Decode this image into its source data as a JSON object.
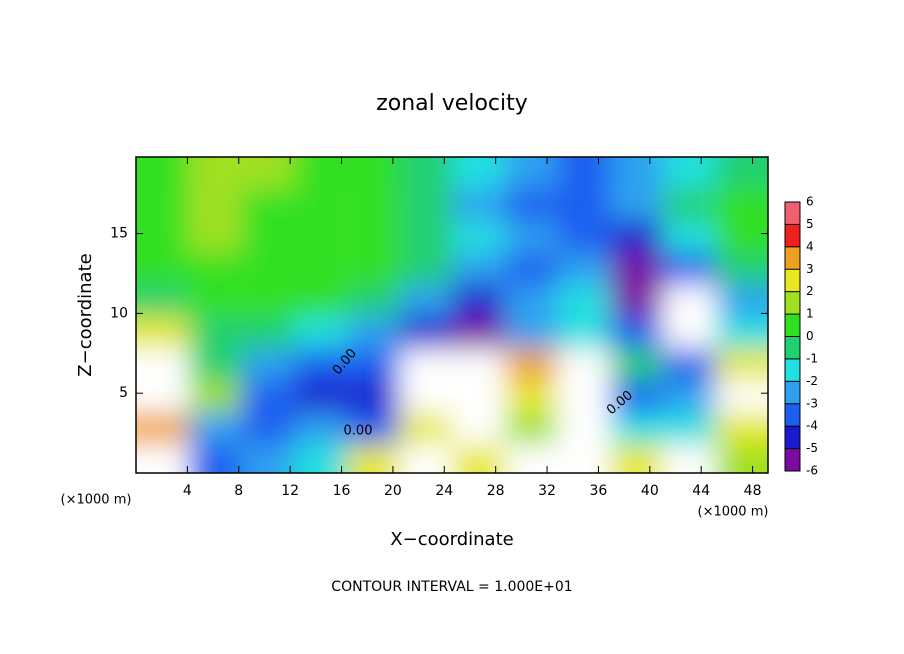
{
  "chart_data": {
    "type": "contour",
    "title": "zonal velocity",
    "x_label": "X−coordinate",
    "y_label": "Z−coordinate",
    "x_unit_label": "(×1000 m)",
    "footer": "CONTOUR INTERVAL = 1.000E+01",
    "contour_labels": [
      "0.00",
      "0.00",
      "0.00"
    ],
    "xlim": [
      0,
      49.2
    ],
    "ylim": [
      0,
      19.8
    ],
    "xticks": [
      4,
      8,
      12,
      16,
      20,
      24,
      28,
      32,
      36,
      40,
      44,
      48
    ],
    "yticks": [
      5,
      10,
      15
    ],
    "x": [
      2.05,
      6.15,
      10.25,
      14.35,
      18.45,
      22.55,
      26.65,
      30.75,
      34.85,
      38.95,
      43.05,
      47.15
    ],
    "y": [
      18.8,
      16.8,
      14.8,
      12.8,
      10.8,
      8.8,
      6.8,
      4.8,
      2.8,
      0.8
    ],
    "z": [
      [
        1,
        1.5,
        1.5,
        1,
        0.5,
        0,
        -1,
        -2,
        -3,
        -2,
        -1,
        0
      ],
      [
        0.5,
        1.5,
        1,
        1,
        0.5,
        0,
        -2,
        -3,
        -3,
        -2,
        0,
        0.5
      ],
      [
        1,
        2,
        1,
        1,
        0.5,
        0,
        -1,
        -2,
        -3,
        -4,
        -1,
        1
      ],
      [
        0.5,
        1,
        1,
        1,
        0.5,
        0,
        -2,
        -3,
        -2,
        -5,
        -3,
        0
      ],
      [
        0,
        0.5,
        1,
        1,
        0,
        -2,
        -4,
        -2,
        -1,
        -5,
        8,
        -2
      ],
      [
        3,
        0,
        0,
        -1,
        -2,
        -4,
        -5,
        -2,
        -1,
        -3,
        8,
        -1
      ],
      [
        8,
        0,
        -2,
        -3,
        -3,
        8,
        8,
        4,
        8,
        0,
        -3,
        3
      ],
      [
        8,
        2,
        -3,
        -4,
        -4,
        8,
        8,
        3,
        8,
        -3,
        -2,
        8
      ],
      [
        4,
        -2,
        -3,
        -2,
        -3,
        3,
        8,
        2,
        8,
        -1,
        -1,
        3
      ],
      [
        8,
        -3,
        -2,
        -1,
        3,
        8,
        3,
        8,
        8,
        3,
        8,
        2
      ]
    ],
    "levels": [
      -6,
      -5,
      -4,
      -3,
      -2,
      -1,
      0,
      1,
      2,
      3,
      4,
      5,
      6
    ],
    "colors": [
      "#7a0aa0",
      "#1a1acd",
      "#1f5ff0",
      "#2fa0f0",
      "#20e0e0",
      "#20d070",
      "#30e020",
      "#a0e020",
      "#e8e820",
      "#f0a020",
      "#f02020",
      "#f06070"
    ]
  }
}
